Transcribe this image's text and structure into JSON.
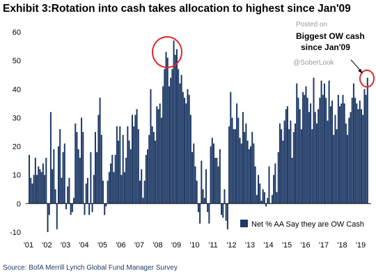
{
  "header": {
    "title": "Exhibit 3:Rotation into cash takes allocation to highest since Jan'09"
  },
  "footer": {
    "source": "Source: BofA Merrill Lynch Global Fund Manager Survey"
  },
  "watermark": {
    "line1": "Posted on",
    "line2": "@SoberLook"
  },
  "colors": {
    "bar": "#1f3a66",
    "highlight": "#e0262c",
    "axis": "#000000"
  },
  "chart_data": {
    "type": "bar",
    "title": "Exhibit 3:Rotation into cash takes allocation to highest since Jan'09",
    "xlabel": "",
    "ylabel": "",
    "ylim": [
      -10,
      60
    ],
    "yticks": [
      -10,
      0,
      10,
      20,
      30,
      40,
      50,
      60
    ],
    "xticks": [
      "'01",
      "'02",
      "'03",
      "'04",
      "'05",
      "'06",
      "'07",
      "'08",
      "'09",
      "'10",
      "'11",
      "'12",
      "'13",
      "'14",
      "'15",
      "'16",
      "'17",
      "'18",
      "'19"
    ],
    "x_start_year": 2001,
    "legend": {
      "label": "Net % AA Say they are OW Cash",
      "position": "bottom-right"
    },
    "annotations": [
      {
        "text_line1": "Biggest OW cash",
        "text_line2": "since Jan'09"
      }
    ],
    "series": [
      {
        "values": [
          17,
          9,
          7,
          10,
          16,
          10,
          13,
          12,
          11,
          14,
          10,
          16,
          -10,
          -4,
          32,
          12,
          19,
          5,
          -9,
          20,
          26,
          9,
          18,
          21,
          -2,
          6,
          9,
          -4,
          -3,
          2,
          28,
          25,
          19,
          16,
          30,
          25,
          -4,
          7,
          9,
          -4,
          18,
          -3,
          10,
          25,
          18,
          31,
          37,
          24,
          8,
          -4,
          -1,
          8,
          11,
          14,
          17,
          11,
          17,
          27,
          22,
          27,
          10,
          24,
          11,
          16,
          27,
          22,
          19,
          31,
          27,
          31,
          33,
          26,
          8,
          12,
          2,
          8,
          17,
          19,
          24,
          40,
          27,
          25,
          22,
          34,
          33,
          35,
          30,
          41,
          47,
          53,
          51,
          41,
          44,
          47,
          57,
          52,
          54,
          47,
          42,
          45,
          39,
          37,
          35,
          40,
          38,
          31,
          18,
          21,
          13,
          8,
          -3,
          -7,
          15,
          5,
          2,
          12,
          -3,
          -7,
          20,
          23,
          21,
          16,
          16,
          13,
          19,
          -4,
          -5,
          5,
          -6,
          -9,
          27,
          39,
          30,
          26,
          26,
          35,
          30,
          23,
          21,
          32,
          25,
          28,
          22,
          19,
          20,
          25,
          21,
          13,
          3,
          10,
          7,
          1,
          5,
          4,
          -1,
          2,
          13,
          0,
          3,
          10,
          14,
          4,
          18,
          28,
          26,
          22,
          29,
          33,
          34,
          26,
          29,
          16,
          25,
          28,
          42,
          37,
          33,
          26,
          39,
          38,
          41,
          37,
          32,
          35,
          26,
          44,
          32,
          28,
          33,
          37,
          43,
          38,
          42,
          37,
          29,
          43,
          34,
          36,
          24,
          31,
          26,
          38,
          34,
          35,
          38,
          35,
          28,
          24,
          30,
          32,
          37,
          42,
          37,
          35,
          33,
          36,
          33,
          31,
          40,
          38,
          44
        ]
      }
    ]
  }
}
